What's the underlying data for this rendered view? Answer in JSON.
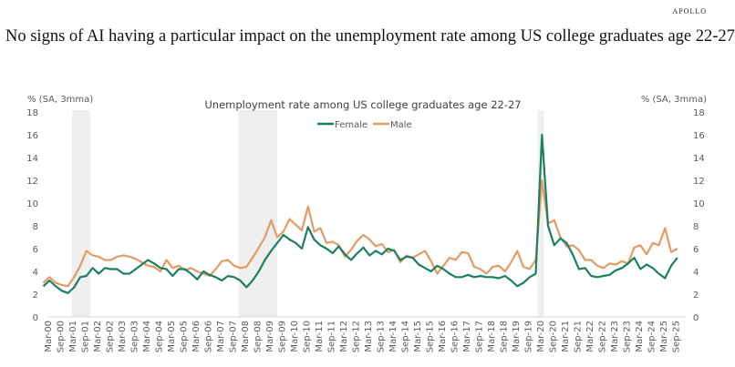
{
  "brand": "APOLLO",
  "headline": "No signs of AI having a particular impact on the unemployment rate among US college graduates age 22-27",
  "colors": {
    "female": "#1a7f63",
    "male": "#e59b62",
    "recession": "#efefef",
    "axis": "#d9d9d9"
  },
  "chart_data": {
    "type": "line",
    "title": "Unemployment rate among US college graduates age 22-27",
    "ylabel_left": "% (SA, 3mma)",
    "ylabel_right": "% (SA, 3mma)",
    "xlabel": "",
    "ylim": [
      0,
      18
    ],
    "yticks": [
      0,
      2,
      4,
      6,
      8,
      10,
      12,
      14,
      16,
      18
    ],
    "grid": false,
    "legend_position": "top-center",
    "x_start": "Jan-00",
    "x_step_months": 3,
    "xtick_labels": [
      "Mar-00",
      "Sep-00",
      "Mar-01",
      "Sep-01",
      "Mar-02",
      "Sep-02",
      "Mar-03",
      "Sep-03",
      "Mar-04",
      "Sep-04",
      "Mar-05",
      "Sep-05",
      "Mar-06",
      "Sep-06",
      "Mar-07",
      "Sep-07",
      "Mar-08",
      "Sep-08",
      "Mar-09",
      "Sep-09",
      "Mar-10",
      "Sep-10",
      "Mar-11",
      "Sep-11",
      "Mar-12",
      "Sep-12",
      "Mar-13",
      "Sep-13",
      "Mar-14",
      "Sep-14",
      "Mar-15",
      "Sep-15",
      "Mar-16",
      "Sep-16",
      "Mar-17",
      "Sep-17",
      "Mar-18",
      "Sep-18",
      "Mar-19",
      "Sep-19",
      "Mar-20",
      "Sep-20",
      "Mar-21",
      "Sep-21",
      "Mar-22",
      "Sep-22",
      "Mar-23",
      "Sep-23",
      "Mar-24",
      "Sep-24",
      "Mar-25",
      "Sep-25"
    ],
    "recessions": [
      {
        "start": "Mar-01",
        "end": "Nov-01"
      },
      {
        "start": "Dec-07",
        "end": "Jun-09"
      },
      {
        "start": "Feb-20",
        "end": "Apr-20"
      }
    ],
    "series": [
      {
        "name": "Female",
        "values": [
          2.7,
          3.2,
          2.7,
          2.3,
          2.1,
          2.6,
          3.5,
          3.6,
          4.3,
          3.8,
          4.3,
          4.2,
          4.2,
          3.8,
          3.8,
          4.2,
          4.6,
          5.0,
          4.7,
          4.3,
          4.2,
          3.6,
          4.2,
          4.2,
          3.8,
          3.3,
          4.0,
          3.7,
          3.5,
          3.2,
          3.6,
          3.5,
          3.2,
          2.6,
          3.2,
          4.0,
          5.0,
          5.8,
          6.5,
          7.2,
          6.8,
          6.5,
          6.0,
          7.9,
          6.8,
          6.3,
          6.0,
          5.6,
          6.2,
          5.5,
          5.0,
          5.6,
          6.1,
          5.4,
          5.8,
          5.5,
          6.0,
          5.8,
          5.0,
          5.3,
          5.2,
          4.6,
          4.3,
          4.0,
          4.5,
          4.2,
          3.8,
          3.5,
          3.5,
          3.7,
          3.5,
          3.6,
          3.5,
          3.5,
          3.4,
          3.6,
          3.2,
          2.7,
          3.0,
          3.5,
          3.8,
          16.0,
          8.0,
          6.3,
          6.9,
          6.5,
          5.5,
          4.2,
          4.3,
          3.6,
          3.5,
          3.6,
          3.7,
          4.1,
          4.3,
          4.7,
          5.2,
          4.2,
          4.6,
          4.3,
          3.8,
          3.4,
          4.5,
          5.2
        ]
      },
      {
        "name": "Male",
        "values": [
          3.0,
          3.5,
          3.0,
          2.8,
          2.7,
          3.5,
          4.5,
          5.8,
          5.4,
          5.3,
          5.0,
          5.0,
          5.3,
          5.4,
          5.3,
          5.1,
          4.8,
          4.5,
          4.4,
          4.0,
          5.0,
          4.3,
          4.5,
          4.1,
          4.3,
          4.0,
          3.8,
          3.6,
          4.2,
          4.9,
          5.0,
          4.5,
          4.3,
          4.4,
          5.2,
          6.1,
          7.0,
          8.5,
          7.0,
          7.5,
          8.6,
          8.1,
          7.6,
          9.7,
          7.5,
          7.8,
          6.5,
          6.6,
          6.3,
          5.3,
          5.9,
          6.7,
          7.2,
          6.8,
          6.2,
          6.4,
          5.7,
          5.9,
          4.8,
          5.4,
          5.2,
          5.5,
          5.8,
          4.9,
          3.8,
          4.5,
          5.2,
          5.0,
          5.7,
          5.6,
          4.4,
          4.2,
          3.8,
          4.4,
          4.5,
          4.0,
          4.8,
          5.8,
          4.4,
          4.2,
          5.0,
          12.0,
          8.2,
          8.5,
          7.0,
          6.2,
          6.3,
          5.9,
          5.0,
          5.0,
          4.5,
          4.3,
          4.7,
          4.6,
          4.9,
          4.7,
          6.1,
          6.3,
          5.5,
          6.5,
          6.3,
          7.8,
          5.7,
          6.0
        ]
      }
    ]
  }
}
